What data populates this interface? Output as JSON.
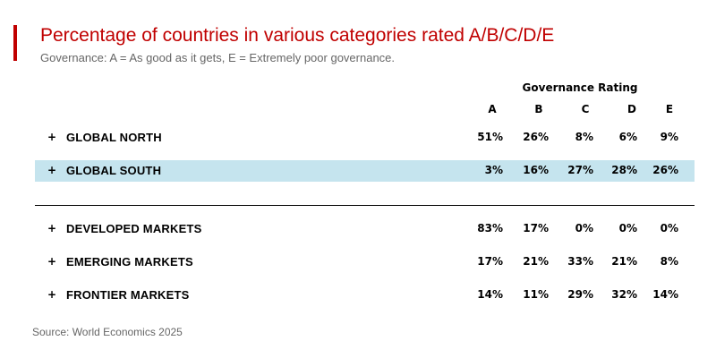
{
  "header": {
    "title": "Percentage of countries in various categories rated A/B/C/D/E",
    "subtitle": "Governance: A = As good as it gets, E = Extremely poor governance."
  },
  "footer": {
    "source": "Source: World Economics 2025"
  },
  "colors": {
    "accent": "#c00000",
    "highlight_row": "#c5e4ee",
    "muted_text": "#666666"
  },
  "chart_data": {
    "type": "table",
    "group_header": "Governance Rating",
    "columns": [
      "A",
      "B",
      "C",
      "D",
      "E"
    ],
    "row_marker": "+",
    "rows": [
      {
        "label": "GLOBAL NORTH",
        "values": [
          "51%",
          "26%",
          "8%",
          "6%",
          "9%"
        ],
        "highlighted": false
      },
      {
        "label": "GLOBAL SOUTH",
        "values": [
          "3%",
          "16%",
          "27%",
          "28%",
          "26%"
        ],
        "highlighted": true
      },
      {
        "label": "DEVELOPED MARKETS",
        "values": [
          "83%",
          "17%",
          "0%",
          "0%",
          "0%"
        ],
        "highlighted": false
      },
      {
        "label": "EMERGING MARKETS",
        "values": [
          "17%",
          "21%",
          "33%",
          "21%",
          "8%"
        ],
        "highlighted": false
      },
      {
        "label": "FRONTIER MARKETS",
        "values": [
          "14%",
          "11%",
          "29%",
          "32%",
          "14%"
        ],
        "highlighted": false
      }
    ]
  }
}
